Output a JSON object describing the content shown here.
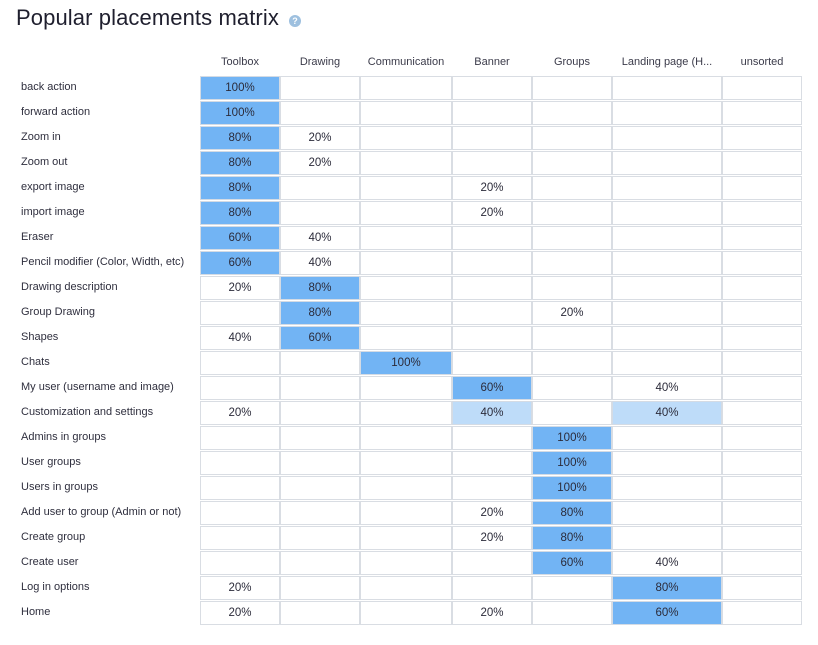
{
  "header": {
    "title": "Popular placements matrix",
    "help_icon": "question-circle-icon"
  },
  "colors": {
    "strong": "#72b4f4",
    "weak": "#bedcf9",
    "border": "#d9dde3",
    "help": "#9ec0df"
  },
  "columns": [
    "Toolbox",
    "Drawing",
    "Communication",
    "Banner",
    "Groups",
    "Landing page (H...",
    "unsorted"
  ],
  "rows": [
    {
      "label": "back action",
      "cells": [
        "100%",
        "",
        "",
        "",
        "",
        "",
        ""
      ],
      "shade": [
        "dark",
        "",
        "",
        "",
        "",
        "",
        ""
      ]
    },
    {
      "label": "forward action",
      "cells": [
        "100%",
        "",
        "",
        "",
        "",
        "",
        ""
      ],
      "shade": [
        "dark",
        "",
        "",
        "",
        "",
        "",
        ""
      ]
    },
    {
      "label": "Zoom in",
      "cells": [
        "80%",
        "20%",
        "",
        "",
        "",
        "",
        ""
      ],
      "shade": [
        "dark",
        "",
        "",
        "",
        "",
        "",
        ""
      ]
    },
    {
      "label": "Zoom out",
      "cells": [
        "80%",
        "20%",
        "",
        "",
        "",
        "",
        ""
      ],
      "shade": [
        "dark",
        "",
        "",
        "",
        "",
        "",
        ""
      ]
    },
    {
      "label": "export image",
      "cells": [
        "80%",
        "",
        "",
        "20%",
        "",
        "",
        ""
      ],
      "shade": [
        "dark",
        "",
        "",
        "",
        "",
        "",
        ""
      ]
    },
    {
      "label": "import image",
      "cells": [
        "80%",
        "",
        "",
        "20%",
        "",
        "",
        ""
      ],
      "shade": [
        "dark",
        "",
        "",
        "",
        "",
        "",
        ""
      ]
    },
    {
      "label": "Eraser",
      "cells": [
        "60%",
        "40%",
        "",
        "",
        "",
        "",
        ""
      ],
      "shade": [
        "dark",
        "",
        "",
        "",
        "",
        "",
        ""
      ]
    },
    {
      "label": "Pencil modifier (Color, Width, etc)",
      "cells": [
        "60%",
        "40%",
        "",
        "",
        "",
        "",
        ""
      ],
      "shade": [
        "dark",
        "",
        "",
        "",
        "",
        "",
        ""
      ]
    },
    {
      "label": "Drawing description",
      "cells": [
        "20%",
        "80%",
        "",
        "",
        "",
        "",
        ""
      ],
      "shade": [
        "",
        "dark",
        "",
        "",
        "",
        "",
        ""
      ]
    },
    {
      "label": "Group Drawing",
      "cells": [
        "",
        "80%",
        "",
        "",
        "20%",
        "",
        ""
      ],
      "shade": [
        "",
        "dark",
        "",
        "",
        "",
        "",
        ""
      ]
    },
    {
      "label": "Shapes",
      "cells": [
        "40%",
        "60%",
        "",
        "",
        "",
        "",
        ""
      ],
      "shade": [
        "",
        "dark",
        "",
        "",
        "",
        "",
        ""
      ]
    },
    {
      "label": "Chats",
      "cells": [
        "",
        "",
        "100%",
        "",
        "",
        "",
        ""
      ],
      "shade": [
        "",
        "",
        "dark",
        "",
        "",
        "",
        ""
      ]
    },
    {
      "label": "My user (username and image)",
      "cells": [
        "",
        "",
        "",
        "60%",
        "",
        "40%",
        ""
      ],
      "shade": [
        "",
        "",
        "",
        "dark",
        "",
        "",
        ""
      ]
    },
    {
      "label": "Customization and settings",
      "cells": [
        "20%",
        "",
        "",
        "40%",
        "",
        "40%",
        ""
      ],
      "shade": [
        "",
        "",
        "",
        "light",
        "",
        "light",
        ""
      ]
    },
    {
      "label": "Admins in groups",
      "cells": [
        "",
        "",
        "",
        "",
        "100%",
        "",
        ""
      ],
      "shade": [
        "",
        "",
        "",
        "",
        "dark",
        "",
        ""
      ]
    },
    {
      "label": "User groups",
      "cells": [
        "",
        "",
        "",
        "",
        "100%",
        "",
        ""
      ],
      "shade": [
        "",
        "",
        "",
        "",
        "dark",
        "",
        ""
      ]
    },
    {
      "label": "Users in groups",
      "cells": [
        "",
        "",
        "",
        "",
        "100%",
        "",
        ""
      ],
      "shade": [
        "",
        "",
        "",
        "",
        "dark",
        "",
        ""
      ]
    },
    {
      "label": "Add user to group (Admin or not)",
      "cells": [
        "",
        "",
        "",
        "20%",
        "80%",
        "",
        ""
      ],
      "shade": [
        "",
        "",
        "",
        "",
        "dark",
        "",
        ""
      ]
    },
    {
      "label": "Create group",
      "cells": [
        "",
        "",
        "",
        "20%",
        "80%",
        "",
        ""
      ],
      "shade": [
        "",
        "",
        "",
        "",
        "dark",
        "",
        ""
      ]
    },
    {
      "label": "Create user",
      "cells": [
        "",
        "",
        "",
        "",
        "60%",
        "40%",
        ""
      ],
      "shade": [
        "",
        "",
        "",
        "",
        "dark",
        "",
        ""
      ]
    },
    {
      "label": "Log in options",
      "cells": [
        "20%",
        "",
        "",
        "",
        "",
        "80%",
        ""
      ],
      "shade": [
        "",
        "",
        "",
        "",
        "",
        "dark",
        ""
      ]
    },
    {
      "label": "Home",
      "cells": [
        "20%",
        "",
        "",
        "20%",
        "",
        "60%",
        ""
      ],
      "shade": [
        "",
        "",
        "",
        "",
        "",
        "dark",
        ""
      ]
    }
  ]
}
